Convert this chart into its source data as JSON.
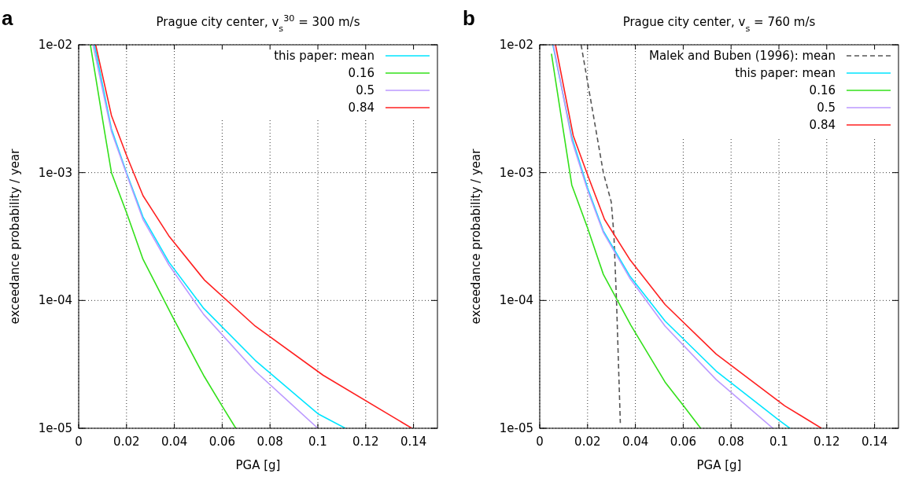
{
  "chart_data": [
    {
      "type": "line",
      "title": "Prague city center, v$_{s}$$^{30}$ = 300 m/s",
      "xlabel": "PGA [g]",
      "ylabel": "exceedance probability / year",
      "annotations": [
        "a"
      ],
      "log": "y",
      "grid": true,
      "legend": "top right",
      "xlim": [
        0,
        0.15
      ],
      "xticks": [
        0,
        0.02,
        0.04,
        0.06,
        0.08,
        0.1,
        0.12,
        0.14
      ],
      "ylim": [
        1e-05,
        0.01
      ],
      "yticks": [
        {
          "value": 0.01,
          "label": "1e-02"
        },
        {
          "value": 0.001,
          "label": "1e-03"
        },
        {
          "value": 0.0001,
          "label": "1e-04"
        },
        {
          "value": 1e-05,
          "label": "1e-05"
        }
      ],
      "series": [
        {
          "name": "this paper: mean",
          "color": "#00e5ff",
          "x": [
            0.0066,
            0.0137,
            0.02,
            0.0269,
            0.0377,
            0.0522,
            0.0738,
            0.1,
            0.1115
          ],
          "values": [
            0.01,
            0.0022,
            0.001,
            0.00045,
            0.0002,
            8.7e-05,
            3.4e-05,
            1.3e-05,
            1e-05
          ]
        },
        {
          "name": "0.16",
          "color": "#33e01a",
          "x": [
            0.0049,
            0.011,
            0.0137,
            0.0203,
            0.0269,
            0.039,
            0.0522,
            0.0599,
            0.0657
          ],
          "values": [
            0.01,
            0.002,
            0.001,
            0.00047,
            0.00021,
            7.6e-05,
            2.6e-05,
            1.5e-05,
            1e-05
          ]
        },
        {
          "name": "0.5",
          "color": "#bb99ff",
          "x": [
            0.006,
            0.0137,
            0.0198,
            0.0269,
            0.0377,
            0.0522,
            0.0738,
            0.1
          ],
          "values": [
            0.01,
            0.0021,
            0.001,
            0.00043,
            0.00019,
            7.8e-05,
            2.8e-05,
            1e-05
          ]
        },
        {
          "name": "0.84",
          "color": "#ff2020",
          "x": [
            0.0071,
            0.0137,
            0.0201,
            0.0269,
            0.0377,
            0.0525,
            0.0738,
            0.1022,
            0.1393
          ],
          "values": [
            0.01,
            0.0028,
            0.00135,
            0.00066,
            0.00032,
            0.000145,
            6.3e-05,
            2.6e-05,
            1e-05
          ]
        }
      ]
    },
    {
      "type": "line",
      "title": "Prague city center, v$_{s}$ = 760 m/s",
      "xlabel": "PGA [g]",
      "ylabel": "exceedance probability / year",
      "annotations": [
        "b"
      ],
      "log": "y",
      "grid": true,
      "legend": "top right",
      "xlim": [
        0,
        0.15
      ],
      "xticks": [
        0,
        0.02,
        0.04,
        0.06,
        0.08,
        0.1,
        0.12,
        0.14
      ],
      "ylim": [
        1e-05,
        0.01
      ],
      "yticks": [
        {
          "value": 0.01,
          "label": "1e-02"
        },
        {
          "value": 0.001,
          "label": "1e-03"
        },
        {
          "value": 0.0001,
          "label": "1e-04"
        },
        {
          "value": 1e-05,
          "label": "1e-05"
        }
      ],
      "series": [
        {
          "name": "Malek and Buben (1996): mean",
          "color": "#555555",
          "line_style": "dashed",
          "x": [
            0.0173,
            0.0266,
            0.0299,
            0.031,
            0.0321,
            0.0337
          ],
          "values": [
            0.01,
            0.001,
            0.00059,
            0.00033,
            0.0001,
            1.1e-05
          ]
        },
        {
          "name": "this paper: mean",
          "color": "#00e5ff",
          "x": [
            0.0055,
            0.0134,
            0.02,
            0.0266,
            0.0376,
            0.0524,
            0.0738,
            0.1002,
            0.1046
          ],
          "values": [
            0.01,
            0.0019,
            0.00076,
            0.00035,
            0.000156,
            6.9e-05,
            2.8e-05,
            1.15e-05,
            1e-05
          ]
        },
        {
          "name": "0.16",
          "color": "#33e01a",
          "x": [
            0.0049,
            0.0101,
            0.0134,
            0.02,
            0.0266,
            0.0381,
            0.0524,
            0.0601,
            0.0673
          ],
          "values": [
            0.0085,
            0.002,
            0.0008,
            0.00037,
            0.00016,
            6.4e-05,
            2.3e-05,
            1.5e-05,
            1e-05
          ]
        },
        {
          "name": "0.5",
          "color": "#bb99ff",
          "x": [
            0.0057,
            0.0134,
            0.02,
            0.0266,
            0.0376,
            0.0524,
            0.0738,
            0.0975
          ],
          "values": [
            0.01,
            0.0018,
            0.00073,
            0.00034,
            0.00015,
            6.3e-05,
            2.4e-05,
            1e-05
          ]
        },
        {
          "name": "0.84",
          "color": "#ff2020",
          "x": [
            0.0066,
            0.014,
            0.02,
            0.0271,
            0.0376,
            0.0524,
            0.0738,
            0.1024,
            0.1178
          ],
          "values": [
            0.01,
            0.00195,
            0.00096,
            0.00043,
            0.00021,
            9.3e-05,
            3.8e-05,
            1.5e-05,
            1e-05
          ]
        }
      ]
    }
  ]
}
